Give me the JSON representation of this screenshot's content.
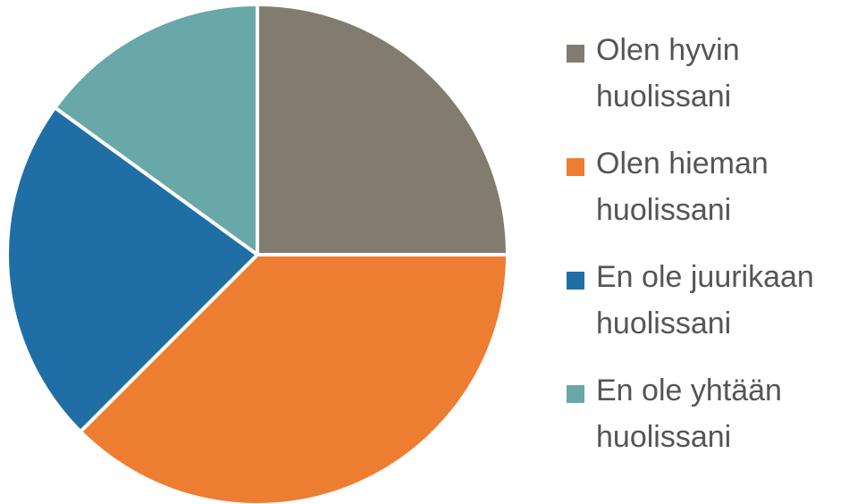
{
  "chart_data": {
    "type": "pie",
    "categories": [
      "Olen hyvin huolissani",
      "Olen hieman huolissani",
      "En ole juurikaan huolissani",
      "En ole yhtään huolissani"
    ],
    "values": [
      25,
      37.5,
      22.5,
      15
    ],
    "colors": [
      "#827b6f",
      "#ed7d31",
      "#1f6fa6",
      "#69a8a9"
    ],
    "legend": "right"
  }
}
